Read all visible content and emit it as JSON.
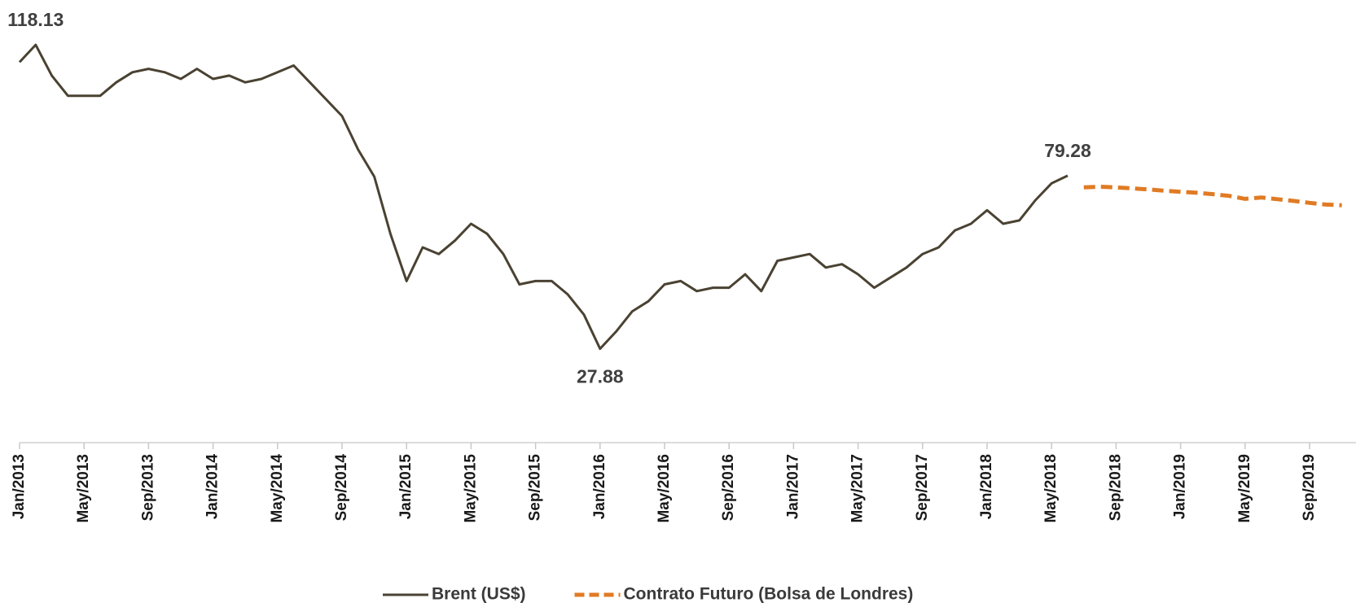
{
  "chart_data": {
    "type": "line",
    "xlim": [
      "2013-01",
      "2019-11"
    ],
    "ylim": [
      0,
      130
    ],
    "xticks": [
      {
        "value": "2013-01",
        "label": "Jan/2013"
      },
      {
        "value": "2013-05",
        "label": "May/2013"
      },
      {
        "value": "2013-09",
        "label": "Sep/2013"
      },
      {
        "value": "2014-01",
        "label": "Jan/2014"
      },
      {
        "value": "2014-05",
        "label": "May/2014"
      },
      {
        "value": "2014-09",
        "label": "Sep/2014"
      },
      {
        "value": "2015-01",
        "label": "Jan/2015"
      },
      {
        "value": "2015-05",
        "label": "May/2015"
      },
      {
        "value": "2015-09",
        "label": "Sep/2015"
      },
      {
        "value": "2016-01",
        "label": "Jan/2016"
      },
      {
        "value": "2016-05",
        "label": "May/2016"
      },
      {
        "value": "2016-09",
        "label": "Sep/2016"
      },
      {
        "value": "2017-01",
        "label": "Jan/2017"
      },
      {
        "value": "2017-05",
        "label": "May/2017"
      },
      {
        "value": "2017-09",
        "label": "Sep/2017"
      },
      {
        "value": "2018-01",
        "label": "Jan/2018"
      },
      {
        "value": "2018-05",
        "label": "May/2018"
      },
      {
        "value": "2018-09",
        "label": "Sep/2018"
      },
      {
        "value": "2019-01",
        "label": "Jan/2019"
      },
      {
        "value": "2019-05",
        "label": "May/2019"
      },
      {
        "value": "2019-09",
        "label": "Sep/2019"
      }
    ],
    "legend": "bottom",
    "series": [
      {
        "name": "Brent (US$)",
        "color": "#4a4232",
        "dash": false,
        "x": [
          "2013-01",
          "2013-02",
          "2013-03",
          "2013-04",
          "2013-05",
          "2013-06",
          "2013-07",
          "2013-08",
          "2013-09",
          "2013-10",
          "2013-11",
          "2013-12",
          "2014-01",
          "2014-02",
          "2014-03",
          "2014-04",
          "2014-05",
          "2014-06",
          "2014-07",
          "2014-08",
          "2014-09",
          "2014-10",
          "2014-11",
          "2014-12",
          "2015-01",
          "2015-02",
          "2015-03",
          "2015-04",
          "2015-05",
          "2015-06",
          "2015-07",
          "2015-08",
          "2015-09",
          "2015-10",
          "2015-11",
          "2015-12",
          "2016-01",
          "2016-02",
          "2016-03",
          "2016-04",
          "2016-05",
          "2016-06",
          "2016-07",
          "2016-08",
          "2016-09",
          "2016-10",
          "2016-11",
          "2016-12",
          "2017-01",
          "2017-02",
          "2017-03",
          "2017-04",
          "2017-05",
          "2017-06",
          "2017-07",
          "2017-08",
          "2017-09",
          "2017-10",
          "2017-11",
          "2017-12",
          "2018-01",
          "2018-02",
          "2018-03",
          "2018-04",
          "2018-05",
          "2018-06"
        ],
        "values": [
          113,
          118.13,
          109,
          103,
          103,
          103,
          107,
          110,
          111,
          110,
          108,
          111,
          108,
          109,
          107,
          108,
          110,
          112,
          107,
          102,
          97,
          87,
          79,
          62,
          48,
          58,
          56,
          60,
          65,
          62,
          56,
          47,
          48,
          48,
          44,
          38,
          27.88,
          33,
          39,
          42,
          47,
          48,
          45,
          46,
          46,
          50,
          45,
          54,
          55,
          56,
          52,
          53,
          50,
          46,
          49,
          52,
          56,
          58,
          63,
          65,
          69,
          65,
          66,
          72,
          77,
          79.28
        ]
      },
      {
        "name": "Contrato Futuro (Bolsa de Londres)",
        "color": "#e07b24",
        "dash": true,
        "x": [
          "2018-07",
          "2018-08",
          "2018-09",
          "2018-10",
          "2018-11",
          "2018-12",
          "2019-01",
          "2019-02",
          "2019-03",
          "2019-04",
          "2019-05",
          "2019-06",
          "2019-07",
          "2019-08",
          "2019-09",
          "2019-10",
          "2019-11"
        ],
        "values": [
          75.8,
          76,
          75.8,
          75.5,
          75.2,
          74.8,
          74.5,
          74.2,
          73.8,
          73.3,
          72.4,
          72.8,
          72.3,
          71.8,
          71.2,
          70.7,
          70.5
        ]
      }
    ]
  }
}
